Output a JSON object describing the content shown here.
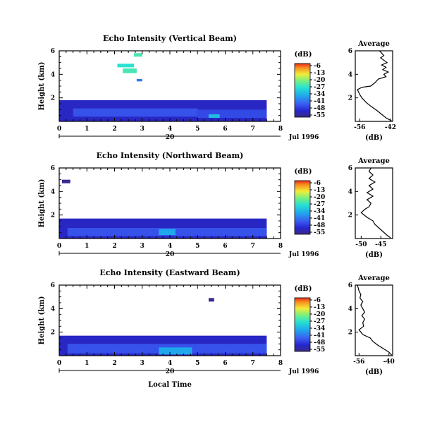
{
  "chart_data": [
    {
      "type": "heatmap",
      "title": "Echo Intensity (Vertical Beam)",
      "ylabel": "Height (km)",
      "xlim": [
        0,
        8
      ],
      "ylim": [
        0,
        6
      ],
      "xticks": [
        "0",
        "1",
        "2",
        "3",
        "4",
        "5",
        "6",
        "7",
        "8"
      ],
      "yticks": [
        "2",
        "4",
        "6"
      ],
      "date_label": "20",
      "month_label": "Jul 1996",
      "colorbar": {
        "unit": "(dB)",
        "ticks": [
          "-6",
          "-13",
          "-20",
          "-27",
          "-34",
          "-41",
          "-48",
          "-55"
        ],
        "range": [
          -55,
          -6
        ]
      },
      "average": {
        "title": "Average",
        "xlabel": "(dB)",
        "xticks": [
          "-56",
          "-42"
        ],
        "xlim": [
          -58,
          -41
        ],
        "yticks": [
          "2",
          "4",
          "6"
        ],
        "profile": [
          [
            -41.5,
            0.05
          ],
          [
            -44,
            0.3
          ],
          [
            -46,
            0.6
          ],
          [
            -48,
            0.9
          ],
          [
            -51,
            1.3
          ],
          [
            -53,
            1.6
          ],
          [
            -55,
            2.0
          ],
          [
            -56,
            2.3
          ],
          [
            -57,
            2.7
          ],
          [
            -55,
            2.9
          ],
          [
            -51,
            3.0
          ],
          [
            -49,
            3.3
          ],
          [
            -47.5,
            3.6
          ],
          [
            -44,
            3.8
          ],
          [
            -45,
            4.0
          ],
          [
            -43,
            4.2
          ],
          [
            -45.5,
            4.4
          ],
          [
            -44,
            4.6
          ],
          [
            -46,
            4.8
          ],
          [
            -43.5,
            5.0
          ],
          [
            -45,
            5.2
          ],
          [
            -46.5,
            5.4
          ],
          [
            -45,
            5.6
          ],
          [
            -46,
            5.8
          ],
          [
            -47,
            6.0
          ]
        ]
      },
      "layers": [
        {
          "x0": 0,
          "x1": 7.5,
          "y0": 0,
          "y1": 1.8,
          "level": 0.1
        },
        {
          "x0": 0.5,
          "x1": 5,
          "y0": 0.4,
          "y1": 1.1,
          "level": 0.22
        },
        {
          "x0": 5,
          "x1": 7.5,
          "y0": 0.3,
          "y1": 1.0,
          "level": 0.2
        },
        {
          "x0": 5.4,
          "x1": 5.8,
          "y0": 0.3,
          "y1": 0.6,
          "level": 0.45
        },
        {
          "x0": 2.1,
          "x1": 2.7,
          "y0": 4.6,
          "y1": 4.9,
          "level": 0.55
        },
        {
          "x0": 2.3,
          "x1": 2.8,
          "y0": 4.1,
          "y1": 4.5,
          "level": 0.6
        },
        {
          "x0": 2.7,
          "x1": 3.0,
          "y0": 5.5,
          "y1": 5.8,
          "level": 0.6
        },
        {
          "x0": 2.8,
          "x1": 3.0,
          "y0": 3.4,
          "y1": 3.6,
          "level": 0.3
        }
      ]
    },
    {
      "type": "heatmap",
      "title": "Echo Intensity (Northward Beam)",
      "ylabel": "Height (km)",
      "xlim": [
        0,
        8
      ],
      "ylim": [
        0,
        6
      ],
      "xticks": [
        "0",
        "1",
        "2",
        "3",
        "4",
        "5",
        "6",
        "7",
        "8"
      ],
      "yticks": [
        "2",
        "4",
        "6"
      ],
      "date_label": "20",
      "month_label": "Jul 1996",
      "colorbar": {
        "unit": "(dB)",
        "ticks": [
          "-6",
          "-13",
          "-20",
          "-27",
          "-34",
          "-41",
          "-48",
          "-55"
        ],
        "range": [
          -55,
          -6
        ]
      },
      "average": {
        "title": "Average",
        "xlabel": "(dB)",
        "xticks": [
          "-50",
          "-45"
        ],
        "xlim": [
          -51.5,
          -42
        ],
        "yticks": [
          "2",
          "4",
          "6"
        ],
        "profile": [
          [
            -42.5,
            0.05
          ],
          [
            -43.5,
            0.3
          ],
          [
            -44.5,
            0.6
          ],
          [
            -45.5,
            0.9
          ],
          [
            -46.5,
            1.2
          ],
          [
            -47,
            1.5
          ],
          [
            -48.5,
            1.8
          ],
          [
            -50,
            2.2
          ],
          [
            -49,
            2.5
          ],
          [
            -48,
            2.7
          ],
          [
            -47.5,
            3.0
          ],
          [
            -48.5,
            3.3
          ],
          [
            -47,
            3.6
          ],
          [
            -48.5,
            3.9
          ],
          [
            -47,
            4.2
          ],
          [
            -48,
            4.5
          ],
          [
            -46.5,
            4.8
          ],
          [
            -48,
            5.1
          ],
          [
            -47,
            5.4
          ],
          [
            -48,
            5.7
          ],
          [
            -47.5,
            6.0
          ]
        ]
      },
      "layers": [
        {
          "x0": 0,
          "x1": 7.5,
          "y0": 0,
          "y1": 1.7,
          "level": 0.1
        },
        {
          "x0": 0.3,
          "x1": 7.5,
          "y0": 0.2,
          "y1": 0.9,
          "level": 0.22
        },
        {
          "x0": 3.6,
          "x1": 4.2,
          "y0": 0.3,
          "y1": 0.8,
          "level": 0.4
        },
        {
          "x0": 0.1,
          "x1": 0.4,
          "y0": 4.7,
          "y1": 5.0,
          "level": 0.02
        }
      ]
    },
    {
      "type": "heatmap",
      "title": "Echo Intensity (Eastward Beam)",
      "ylabel": "Height (km)",
      "xlabel": "Local Time",
      "xlim": [
        0,
        8
      ],
      "ylim": [
        0,
        6
      ],
      "xticks": [
        "0",
        "1",
        "2",
        "3",
        "4",
        "5",
        "6",
        "7",
        "8"
      ],
      "yticks": [
        "2",
        "4",
        "6"
      ],
      "date_label": "20",
      "month_label": "Jul 1996",
      "colorbar": {
        "unit": "(dB)",
        "ticks": [
          "-6",
          "-13",
          "-20",
          "-27",
          "-34",
          "-41",
          "-48",
          "-55"
        ],
        "range": [
          -55,
          -6
        ]
      },
      "average": {
        "title": "Average",
        "xlabel": "(dB)",
        "xticks": [
          "-56",
          "-40"
        ],
        "xlim": [
          -58,
          -38
        ],
        "yticks": [
          "2",
          "4",
          "6"
        ],
        "profile": [
          [
            -38.5,
            0.05
          ],
          [
            -40,
            0.3
          ],
          [
            -43,
            0.6
          ],
          [
            -46,
            0.9
          ],
          [
            -48.5,
            1.2
          ],
          [
            -50,
            1.5
          ],
          [
            -54,
            1.8
          ],
          [
            -56,
            2.2
          ],
          [
            -53.5,
            2.5
          ],
          [
            -54,
            2.8
          ],
          [
            -53,
            3.1
          ],
          [
            -54.5,
            3.4
          ],
          [
            -53,
            3.7
          ],
          [
            -54,
            4.0
          ],
          [
            -55,
            4.3
          ],
          [
            -54,
            4.6
          ],
          [
            -55.5,
            4.9
          ],
          [
            -55,
            5.2
          ],
          [
            -56,
            5.5
          ],
          [
            -56.5,
            5.8
          ],
          [
            -57,
            6.0
          ]
        ]
      },
      "layers": [
        {
          "x0": 0,
          "x1": 7.5,
          "y0": 0,
          "y1": 1.7,
          "level": 0.1
        },
        {
          "x0": 0.3,
          "x1": 7.5,
          "y0": 0.2,
          "y1": 1.0,
          "level": 0.22
        },
        {
          "x0": 3.6,
          "x1": 4.8,
          "y0": 0.1,
          "y1": 0.7,
          "level": 0.4
        },
        {
          "x0": 5.4,
          "x1": 5.6,
          "y0": 4.6,
          "y1": 4.9,
          "level": 0.02
        }
      ]
    }
  ]
}
